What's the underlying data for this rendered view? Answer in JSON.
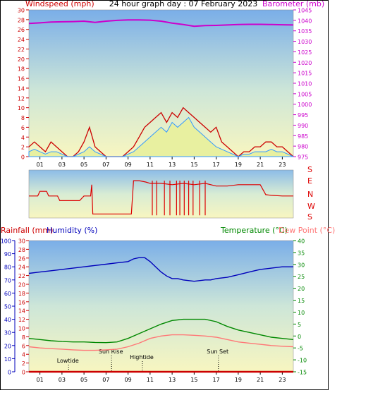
{
  "colors": {
    "wind": "#cc0000",
    "gust_fill": "#3399ff",
    "barometer": "#cc00cc",
    "direction": "#dd0000",
    "humidity": "#0000bb",
    "temperature": "#008800",
    "dewpoint": "#ff7777",
    "rainfall": "#cc0000",
    "annotation": "#000000"
  },
  "chart_data": [
    {
      "type": "line",
      "title": "24 hour graph day : 07 February 2023",
      "ylabel_left": "Windspeed (mph)",
      "ylabel_right": "Barometer (mb)",
      "x_ticks": [
        "01",
        "03",
        "05",
        "07",
        "09",
        "11",
        "13",
        "15",
        "17",
        "19",
        "21",
        "23"
      ],
      "xlim": [
        0,
        24
      ],
      "ylim_left": [
        0,
        30
      ],
      "ylim_right": [
        975,
        1045
      ],
      "y_ticks_left": [
        0,
        2,
        4,
        6,
        8,
        10,
        12,
        14,
        16,
        18,
        20,
        22,
        24,
        26,
        28,
        30
      ],
      "y_ticks_right": [
        975,
        980,
        985,
        990,
        995,
        1000,
        1005,
        1010,
        1015,
        1020,
        1025,
        1030,
        1035,
        1040,
        1045
      ],
      "grid": false,
      "series": [
        {
          "name": "Windspeed (mph)",
          "axis": "left",
          "x": [
            0,
            0.5,
            1,
            1.5,
            2,
            2.5,
            3,
            3.5,
            4,
            4.5,
            5,
            5.5,
            6,
            6.5,
            7,
            7.5,
            8,
            8.5,
            9,
            9.5,
            10,
            10.5,
            11,
            11.5,
            12,
            12.5,
            13,
            13.5,
            14,
            14.5,
            15,
            15.5,
            16,
            16.5,
            17,
            17.5,
            18,
            18.5,
            19,
            19.5,
            20,
            20.5,
            21,
            21.5,
            22,
            22.5,
            23,
            23.5,
            24
          ],
          "values": [
            1,
            1.5,
            1,
            0.5,
            1,
            1,
            0.5,
            0,
            0,
            0.5,
            1,
            2,
            1,
            0.5,
            0,
            0,
            0,
            0,
            0.5,
            1,
            2,
            3,
            4,
            5,
            6,
            5,
            7,
            6,
            7,
            8,
            6,
            5,
            4,
            3,
            2,
            1.5,
            1,
            0.5,
            0,
            0.5,
            0.5,
            1,
            1,
            1,
            1.5,
            1,
            1,
            0.5,
            0
          ]
        },
        {
          "name": "Gust",
          "axis": "left",
          "x": [
            0,
            0.5,
            1,
            1.5,
            2,
            2.5,
            3,
            3.5,
            4,
            4.5,
            5,
            5.5,
            6,
            6.5,
            7,
            7.5,
            8,
            8.5,
            9,
            9.5,
            10,
            10.5,
            11,
            11.5,
            12,
            12.5,
            13,
            13.5,
            14,
            14.5,
            15,
            15.5,
            16,
            16.5,
            17,
            17.5,
            18,
            18.5,
            19,
            19.5,
            20,
            20.5,
            21,
            21.5,
            22,
            22.5,
            23,
            23.5,
            24
          ],
          "values": [
            2,
            3,
            2,
            1,
            3,
            2,
            1,
            0,
            0,
            1,
            3,
            6,
            2,
            1,
            0,
            0,
            0,
            0,
            1,
            2,
            4,
            6,
            7,
            8,
            9,
            7,
            9,
            8,
            10,
            9,
            8,
            7,
            6,
            5,
            6,
            3,
            2,
            1,
            0,
            1,
            1,
            2,
            2,
            3,
            3,
            2,
            2,
            1,
            0
          ]
        },
        {
          "name": "Barometer (mb)",
          "axis": "right",
          "x": [
            0,
            1,
            2,
            3,
            4,
            5,
            5.5,
            6,
            6.5,
            7,
            8,
            9,
            10,
            11,
            12,
            13,
            14,
            15,
            16,
            17,
            18,
            19,
            20,
            21,
            22,
            23,
            24
          ],
          "values": [
            1038.5,
            1038.8,
            1039.2,
            1039.3,
            1039.4,
            1039.6,
            1039.3,
            1039.0,
            1039.3,
            1039.6,
            1040.0,
            1040.2,
            1040.2,
            1040.1,
            1039.6,
            1038.7,
            1038.0,
            1037.2,
            1037.5,
            1037.6,
            1037.8,
            1038.0,
            1038.1,
            1038.1,
            1038.0,
            1037.9,
            1037.8
          ]
        }
      ]
    },
    {
      "type": "line",
      "title": "",
      "y_tick_labels": [
        "S",
        "E",
        "N",
        "W",
        "S"
      ],
      "x_ticks": [
        "01",
        "03",
        "05",
        "07",
        "09",
        "11",
        "13",
        "15",
        "17",
        "19",
        "21",
        "23"
      ],
      "xlim": [
        0,
        24
      ],
      "ylim": [
        0,
        360
      ],
      "series": [
        {
          "name": "Wind Direction",
          "x": [
            0,
            0.8,
            1,
            1.6,
            1.8,
            2.6,
            2.8,
            4.6,
            5.0,
            5.6,
            5.7,
            5.8,
            9.3,
            9.5,
            10.0,
            10.6,
            11,
            12,
            13,
            14,
            15,
            16,
            17,
            18,
            19,
            20,
            21,
            21.5,
            22,
            23,
            24
          ],
          "values": [
            165,
            165,
            200,
            200,
            165,
            165,
            130,
            130,
            165,
            165,
            250,
            30,
            30,
            280,
            280,
            270,
            260,
            260,
            250,
            260,
            250,
            260,
            240,
            240,
            250,
            250,
            250,
            175,
            170,
            165,
            165
          ]
        }
      ]
    },
    {
      "type": "line",
      "title": "",
      "ylabel_left_1": "Rainfall (mm)",
      "ylabel_left_2": "Humidity (%)",
      "ylabel_right_1": "Temperature (°C)",
      "ylabel_right_2": "Dew Point (°C)",
      "x_ticks": [
        "01",
        "03",
        "05",
        "07",
        "09",
        "11",
        "13",
        "15",
        "17",
        "19",
        "21",
        "23"
      ],
      "xlim": [
        0,
        24
      ],
      "y_ticks_humidity": [
        0,
        10,
        20,
        30,
        40,
        50,
        60,
        70,
        80,
        90,
        100
      ],
      "y_ticks_rain": [
        0,
        2,
        4,
        6,
        8,
        10,
        12,
        14,
        16,
        18,
        20,
        22,
        24,
        26,
        28,
        30
      ],
      "y_ticks_temp": [
        -15,
        -10,
        -5,
        0,
        5,
        10,
        15,
        20,
        25,
        30,
        35,
        40
      ],
      "ylim_humidity": [
        0,
        100
      ],
      "ylim_temp": [
        -15,
        40
      ],
      "annotations": [
        {
          "label": "Lowtide",
          "x": 3.6
        },
        {
          "label": "Sun Rise",
          "x": 7.5
        },
        {
          "label": "Hightide",
          "x": 10.3
        },
        {
          "label": "Sun Set",
          "x": 17.2
        }
      ],
      "series": [
        {
          "name": "Humidity",
          "axis": "humidity",
          "x": [
            0,
            1,
            2,
            3,
            4,
            5,
            6,
            7,
            8,
            9,
            9.5,
            10,
            10.5,
            11,
            11.5,
            12,
            12.5,
            13,
            13.5,
            14,
            15,
            16,
            16.5,
            17,
            18,
            19,
            20,
            21,
            22,
            23,
            24
          ],
          "values": [
            75,
            76,
            77,
            78,
            79,
            80,
            81,
            82,
            83,
            84,
            86,
            87,
            87,
            84,
            80,
            76,
            73,
            71,
            71,
            70,
            69,
            70,
            70,
            71,
            72,
            74,
            76,
            78,
            79,
            80,
            80
          ]
        },
        {
          "name": "Temperature",
          "axis": "temp",
          "x": [
            0,
            1,
            2,
            3,
            4,
            5,
            6,
            7,
            8,
            9,
            10,
            11,
            12,
            13,
            14,
            15,
            16,
            17,
            18,
            19,
            20,
            21,
            22,
            23,
            24
          ],
          "values": [
            -1,
            -1.5,
            -2,
            -2.3,
            -2.5,
            -2.5,
            -2.7,
            -2.8,
            -2.5,
            -1,
            1,
            3,
            5,
            6.5,
            7,
            7,
            7,
            6,
            4,
            2.5,
            1.5,
            0.5,
            -0.5,
            -1,
            -1.5
          ]
        },
        {
          "name": "Dew Point",
          "axis": "temp",
          "x": [
            0,
            1,
            2,
            3,
            4,
            5,
            6,
            7,
            8,
            9,
            10,
            11,
            12,
            13,
            14,
            15,
            16,
            17,
            18,
            19,
            20,
            21,
            22,
            23,
            24
          ],
          "values": [
            -4.5,
            -5,
            -5.3,
            -5.5,
            -5.8,
            -6,
            -6,
            -5.8,
            -5.5,
            -4.5,
            -3,
            -1,
            0,
            0.5,
            0.5,
            0.3,
            0,
            -0.5,
            -1.5,
            -2.5,
            -3,
            -3.5,
            -4,
            -4.3,
            -4.5
          ]
        },
        {
          "name": "Rainfall",
          "axis": "rain",
          "x": [
            0,
            24
          ],
          "values": [
            0,
            0
          ]
        }
      ]
    }
  ]
}
